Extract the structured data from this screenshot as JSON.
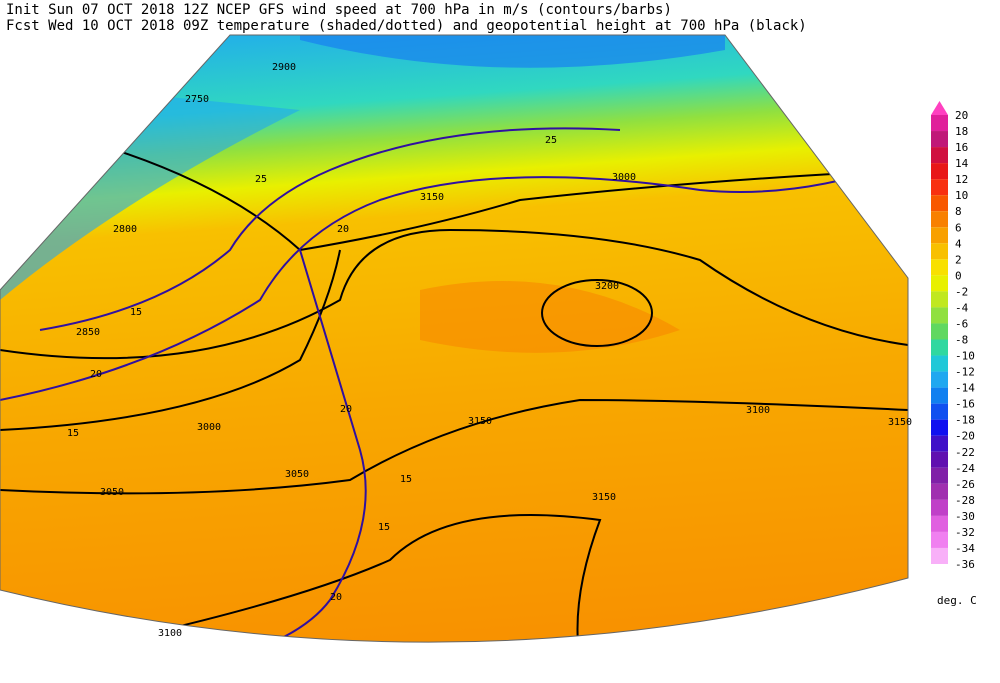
{
  "header": {
    "line1": "Init  Sun 07 OCT 2018 12Z  NCEP GFS wind speed at 700 hPa in m/s (contours/barbs)",
    "line2": "Fcst Wed 10 OCT 2018 09Z  temperature (shaded/dotted) and geopotential height at 700 hPa (black)"
  },
  "legend": {
    "unit": "deg. C",
    "levels": [
      20,
      18,
      16,
      14,
      12,
      10,
      8,
      6,
      4,
      2,
      0,
      -2,
      -4,
      -6,
      -8,
      -10,
      -12,
      -14,
      -16,
      -18,
      -20,
      -22,
      -24,
      -26,
      -28,
      -30,
      -32,
      -34,
      -36
    ],
    "colors": [
      "#ff40c0",
      "#e0209a",
      "#c01878",
      "#d01040",
      "#e81818",
      "#f83010",
      "#f85800",
      "#f88000",
      "#f8a000",
      "#f8c000",
      "#f8e000",
      "#e8f000",
      "#c0e820",
      "#90e040",
      "#60d860",
      "#30d8a0",
      "#20c8d8",
      "#20a8f0",
      "#1080f0",
      "#1050f0",
      "#1010f0",
      "#4010c8",
      "#6010b0",
      "#8020a8",
      "#a030b0",
      "#c040c8",
      "#e060e0",
      "#f080f0",
      "#f8b0f8"
    ]
  },
  "map": {
    "height_labels": [
      "2750",
      "2800",
      "2850",
      "2900",
      "3000",
      "3050",
      "3100",
      "3150",
      "3200",
      "3150",
      "3150",
      "3100",
      "3050",
      "3000",
      "3150"
    ],
    "wind_labels": [
      "15",
      "20",
      "25",
      "15",
      "20",
      "15",
      "20",
      "15",
      "20",
      "25"
    ]
  }
}
